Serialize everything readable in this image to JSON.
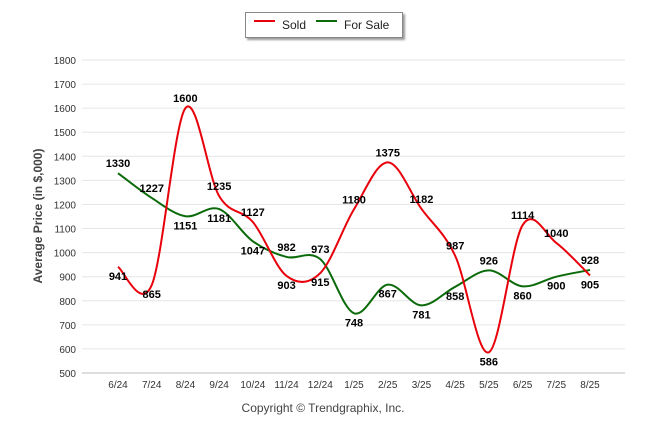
{
  "chart_data": {
    "type": "line",
    "categories": [
      "6/24",
      "7/24",
      "8/24",
      "9/24",
      "10/24",
      "11/24",
      "12/24",
      "1/25",
      "2/25",
      "3/25",
      "4/25",
      "5/25",
      "6/25",
      "7/25",
      "8/25"
    ],
    "series": [
      {
        "name": "Sold",
        "color": "#e8000b",
        "values": [
          941,
          865,
          1600,
          1235,
          1127,
          903,
          915,
          1180,
          1375,
          1182,
          987,
          586,
          1114,
          1040,
          905
        ]
      },
      {
        "name": "For Sale",
        "color": "#0b6b0b",
        "values": [
          1330,
          1227,
          1151,
          1181,
          1047,
          982,
          973,
          748,
          867,
          781,
          858,
          926,
          860,
          900,
          928
        ]
      }
    ],
    "ylabel": "Average Price (in $,000)",
    "xlabel": "",
    "ylim": [
      500,
      1800
    ],
    "yticks": [
      500,
      600,
      700,
      800,
      900,
      1000,
      1100,
      1200,
      1300,
      1400,
      1500,
      1600,
      1700,
      1800
    ],
    "grid": true,
    "legend_position": "top-center",
    "footer": "Copyright © Trendgraphix, Inc."
  }
}
